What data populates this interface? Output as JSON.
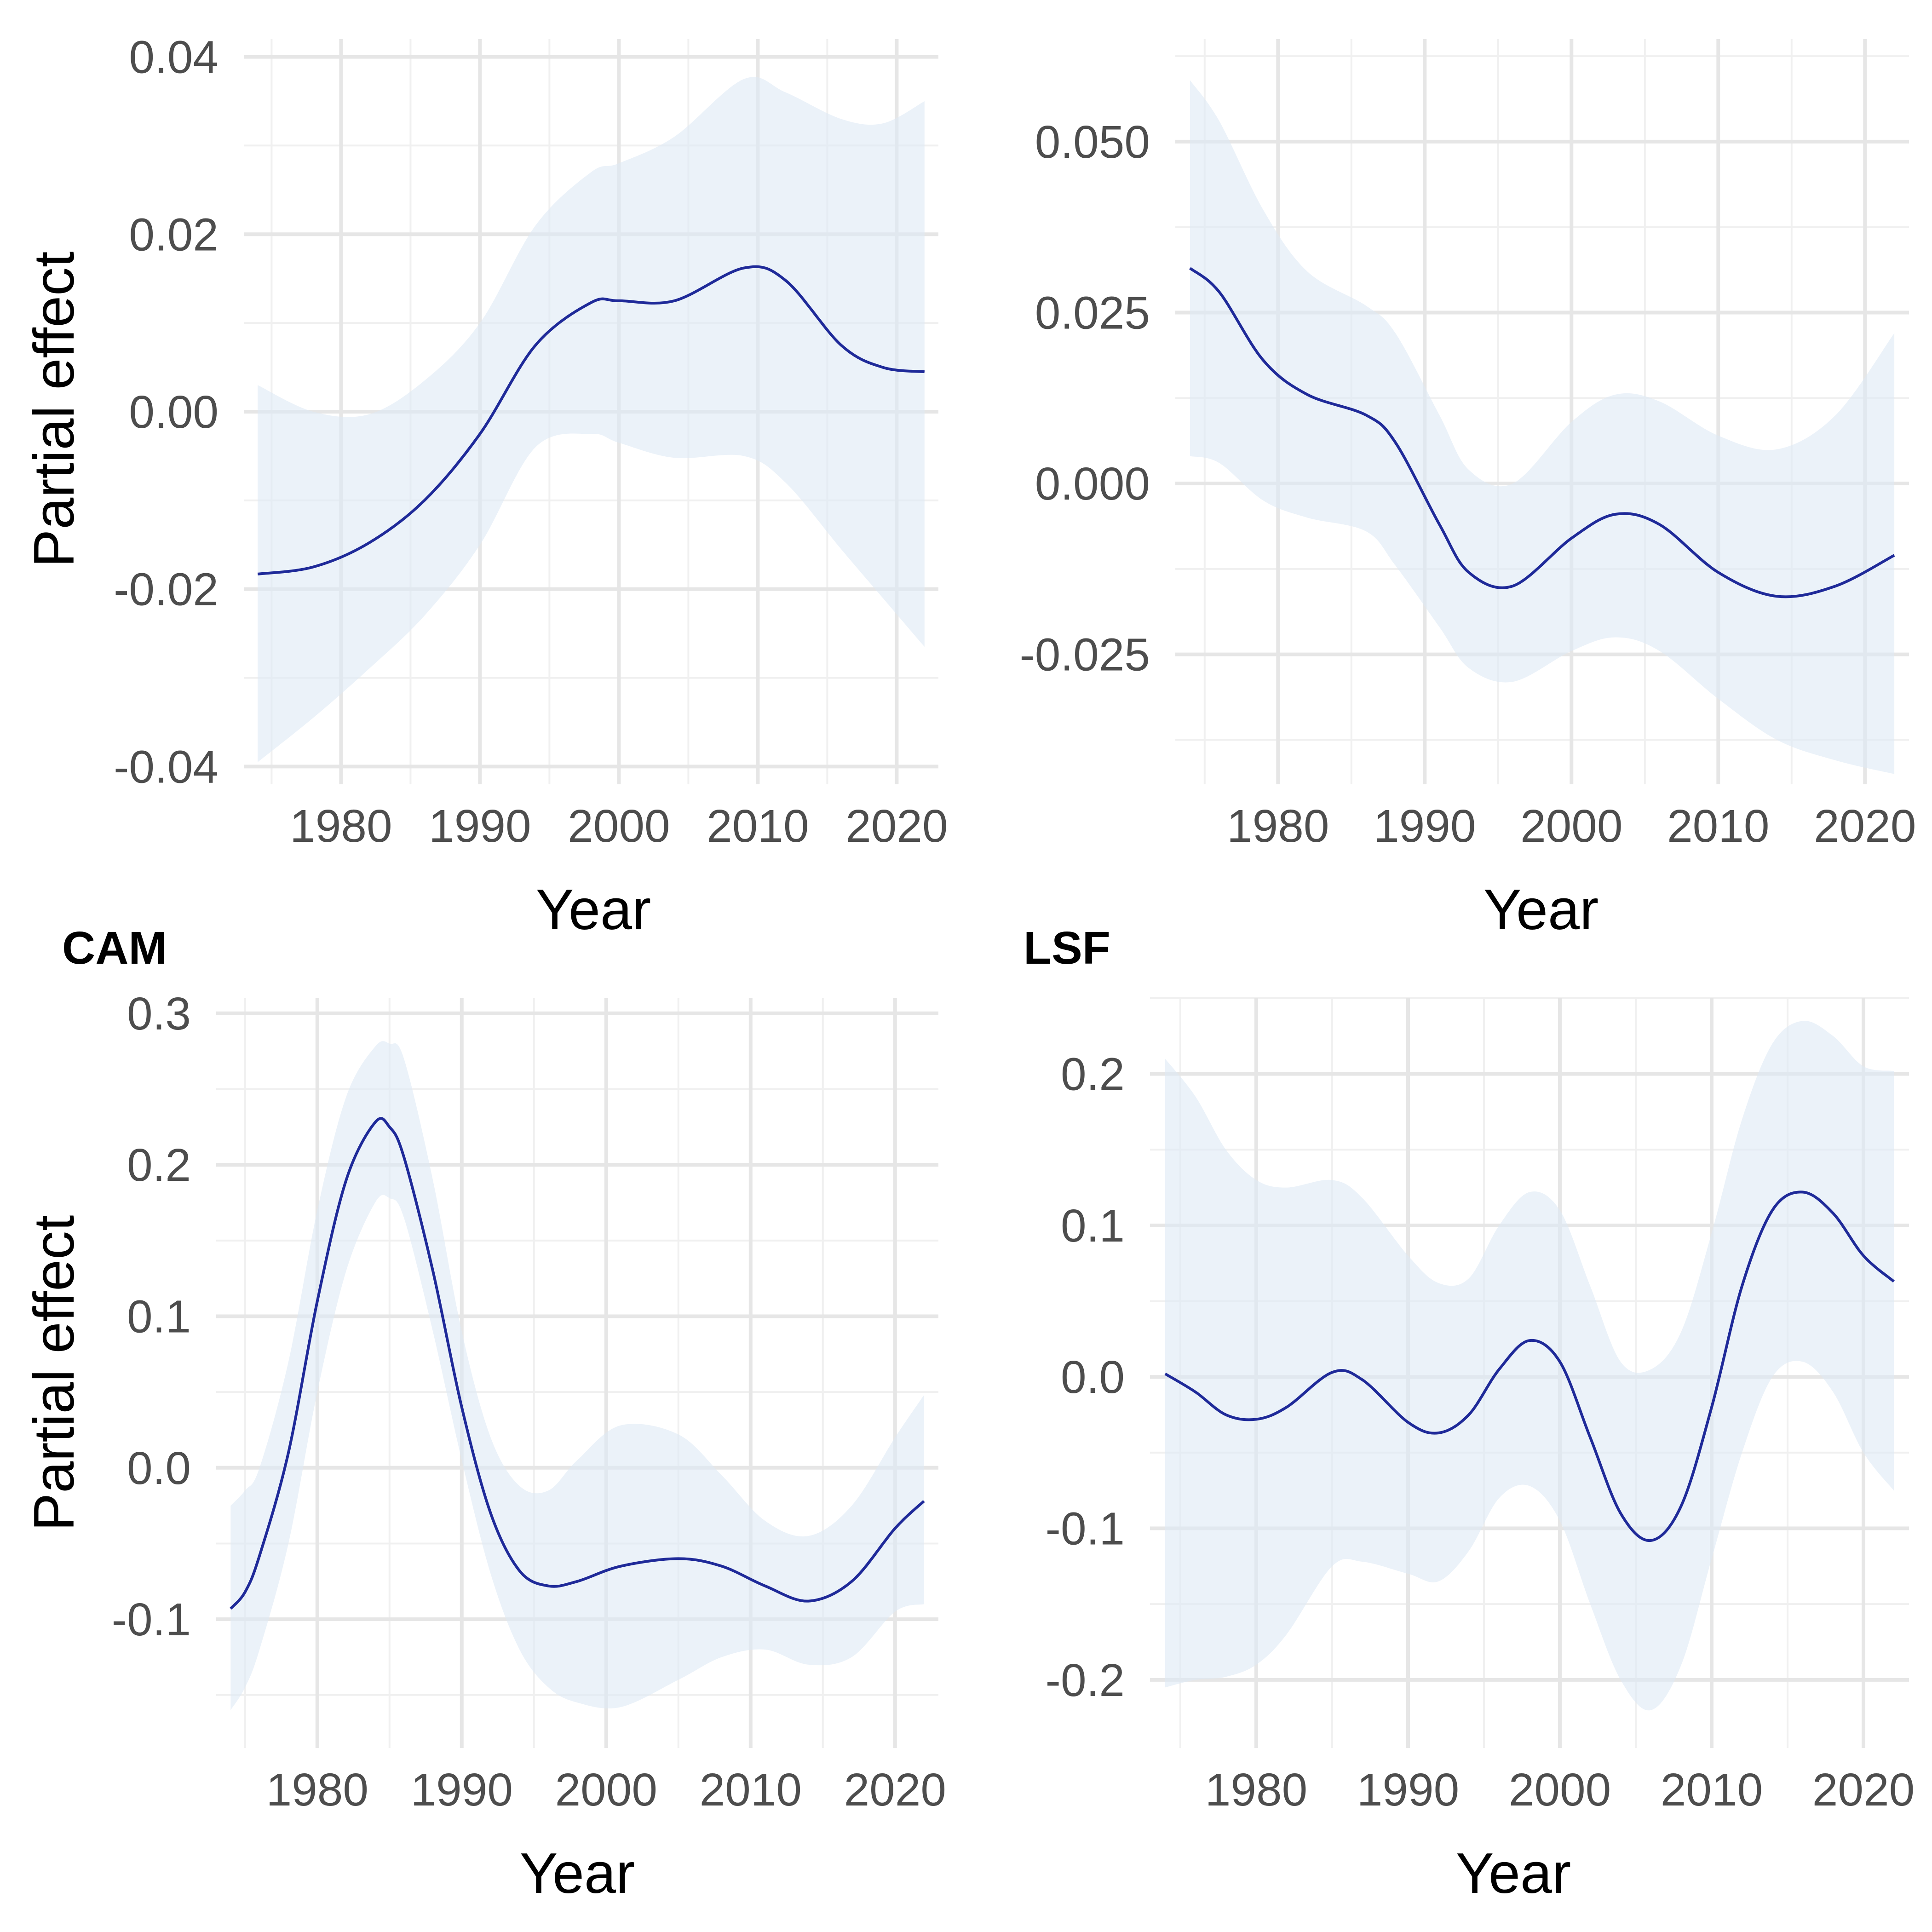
{
  "chart_data": [
    {
      "type": "line",
      "title": "",
      "xlabel": "Year",
      "ylabel": "Partial effect",
      "xlim": [
        1973,
        2023
      ],
      "ylim": [
        -0.042,
        0.042
      ],
      "xticks": [
        1980,
        1990,
        2000,
        2010,
        2020
      ],
      "xtick_labels": [
        "1980",
        "1990",
        "2000",
        "2010",
        "2020"
      ],
      "yticks": [
        -0.04,
        -0.02,
        0.0,
        0.02,
        0.04
      ],
      "ytick_labels": [
        "-0.04",
        "-0.02",
        "0.00",
        "0.02",
        "0.04"
      ],
      "grid": true,
      "series": [
        {
          "x": [
            1974,
            1978,
            1982,
            1986,
            1990,
            1994,
            1998,
            2000,
            2004,
            2009,
            2012,
            2016,
            2019,
            2022
          ],
          "y": [
            -0.0183,
            -0.0175,
            -0.0148,
            -0.01,
            -0.0025,
            0.0075,
            0.0123,
            0.0125,
            0.0125,
            0.0162,
            0.0148,
            0.0075,
            0.005,
            0.0045
          ],
          "lower": [
            -0.0395,
            -0.0345,
            -0.029,
            -0.023,
            -0.015,
            -0.004,
            -0.0025,
            -0.0035,
            -0.0052,
            -0.005,
            -0.008,
            -0.0155,
            -0.021,
            -0.0265
          ],
          "upper": [
            0.003,
            0.0,
            -0.0003,
            0.0035,
            0.01,
            0.021,
            0.027,
            0.028,
            0.031,
            0.0375,
            0.036,
            0.033,
            0.0325,
            0.035
          ]
        }
      ]
    },
    {
      "type": "line",
      "title": "",
      "xlabel": "Year",
      "ylabel": "",
      "xlim": [
        1973,
        2023
      ],
      "ylim": [
        -0.044,
        0.065
      ],
      "xticks": [
        1980,
        1990,
        2000,
        2010,
        2020
      ],
      "xtick_labels": [
        "1980",
        "1990",
        "2000",
        "2010",
        "2020"
      ],
      "yticks": [
        -0.025,
        0.0,
        0.025,
        0.05
      ],
      "ytick_labels": [
        "-0.025",
        "0.000",
        "0.025",
        "0.050"
      ],
      "grid": true,
      "series": [
        {
          "x": [
            1974,
            1976,
            1979,
            1982,
            1986,
            1988,
            1991,
            1993,
            1996,
            2000,
            2003,
            2006,
            2010,
            2014,
            2018,
            2022
          ],
          "y": [
            0.0315,
            0.028,
            0.018,
            0.013,
            0.01,
            0.006,
            -0.006,
            -0.013,
            -0.015,
            -0.008,
            -0.0045,
            -0.006,
            -0.013,
            -0.0165,
            -0.015,
            -0.0105
          ],
          "lower": [
            0.004,
            0.003,
            -0.0025,
            -0.005,
            -0.007,
            -0.012,
            -0.021,
            -0.027,
            -0.029,
            -0.0245,
            -0.0225,
            -0.0245,
            -0.0315,
            -0.0375,
            -0.0405,
            -0.0425
          ],
          "upper": [
            0.059,
            0.053,
            0.04,
            0.031,
            0.026,
            0.022,
            0.01,
            0.002,
            0.0,
            0.009,
            0.013,
            0.012,
            0.007,
            0.005,
            0.01,
            0.022
          ]
        }
      ]
    },
    {
      "type": "line",
      "title": "CAM",
      "xlabel": "Year",
      "ylabel": "Partial effect",
      "xlim": [
        1973,
        2023
      ],
      "ylim": [
        -0.185,
        0.31
      ],
      "xticks": [
        1980,
        1990,
        2000,
        2010,
        2020
      ],
      "xtick_labels": [
        "1980",
        "1990",
        "2000",
        "2010",
        "2020"
      ],
      "yticks": [
        -0.1,
        0.0,
        0.1,
        0.2,
        0.3
      ],
      "ytick_labels": [
        "-0.1",
        "0.0",
        "0.1",
        "0.2",
        "0.3"
      ],
      "grid": true,
      "series": [
        {
          "x": [
            1974,
            1975,
            1976,
            1978,
            1980,
            1982,
            1984,
            1985,
            1986,
            1988,
            1990,
            1992,
            1994,
            1996,
            1998,
            2001,
            2005,
            2008,
            2011,
            2014,
            2017,
            2020,
            2022
          ],
          "y": [
            -0.093,
            -0.082,
            -0.058,
            0.01,
            0.11,
            0.19,
            0.228,
            0.225,
            0.205,
            0.13,
            0.04,
            -0.03,
            -0.068,
            -0.078,
            -0.075,
            -0.065,
            -0.06,
            -0.065,
            -0.078,
            -0.088,
            -0.075,
            -0.04,
            -0.022
          ],
          "lower": [
            -0.16,
            -0.145,
            -0.12,
            -0.05,
            0.05,
            0.13,
            0.175,
            0.178,
            0.165,
            0.09,
            0.005,
            -0.07,
            -0.12,
            -0.145,
            -0.155,
            -0.158,
            -0.14,
            -0.125,
            -0.12,
            -0.13,
            -0.125,
            -0.095,
            -0.09
          ],
          "upper": [
            -0.025,
            -0.015,
            0.0,
            0.07,
            0.17,
            0.245,
            0.278,
            0.28,
            0.27,
            0.19,
            0.09,
            0.02,
            -0.012,
            -0.015,
            0.005,
            0.028,
            0.022,
            -0.005,
            -0.035,
            -0.045,
            -0.025,
            0.02,
            0.048
          ]
        }
      ]
    },
    {
      "type": "line",
      "title": "LSF",
      "xlabel": "Year",
      "ylabel": "",
      "xlim": [
        1973,
        2023
      ],
      "ylim": [
        -0.245,
        0.25
      ],
      "xticks": [
        1980,
        1990,
        2000,
        2010,
        2020
      ],
      "xtick_labels": [
        "1980",
        "1990",
        "2000",
        "2010",
        "2020"
      ],
      "yticks": [
        -0.2,
        -0.1,
        0.0,
        0.1,
        0.2
      ],
      "ytick_labels": [
        "-0.2",
        "-0.1",
        "0.0",
        "0.1",
        "0.2"
      ],
      "grid": true,
      "series": [
        {
          "x": [
            1974,
            1976,
            1978,
            1980,
            1982,
            1985,
            1987,
            1990,
            1992,
            1994,
            1996,
            1998,
            2000,
            2002,
            2004,
            2006,
            2008,
            2010,
            2012,
            2014,
            2016,
            2018,
            2020,
            2022
          ],
          "y": [
            0.002,
            -0.01,
            -0.025,
            -0.028,
            -0.02,
            0.003,
            -0.002,
            -0.03,
            -0.037,
            -0.025,
            0.005,
            0.024,
            0.01,
            -0.04,
            -0.09,
            -0.108,
            -0.085,
            -0.02,
            0.06,
            0.11,
            0.122,
            0.108,
            0.08,
            0.063
          ],
          "lower": [
            -0.205,
            -0.2,
            -0.198,
            -0.19,
            -0.17,
            -0.125,
            -0.122,
            -0.13,
            -0.135,
            -0.115,
            -0.08,
            -0.072,
            -0.095,
            -0.15,
            -0.2,
            -0.22,
            -0.19,
            -0.12,
            -0.05,
            0.0,
            0.01,
            -0.01,
            -0.05,
            -0.075
          ],
          "upper": [
            0.21,
            0.185,
            0.15,
            0.13,
            0.125,
            0.13,
            0.118,
            0.08,
            0.062,
            0.065,
            0.1,
            0.122,
            0.11,
            0.06,
            0.01,
            0.005,
            0.03,
            0.095,
            0.17,
            0.22,
            0.235,
            0.225,
            0.205,
            0.202
          ]
        }
      ]
    }
  ],
  "colors": {
    "line": "#1f2a99",
    "ribbon": "#ddeaf5",
    "grid_major": "#e6e6e6",
    "grid_minor": "#f0f0f0",
    "tick_text": "#4d4d4d"
  }
}
